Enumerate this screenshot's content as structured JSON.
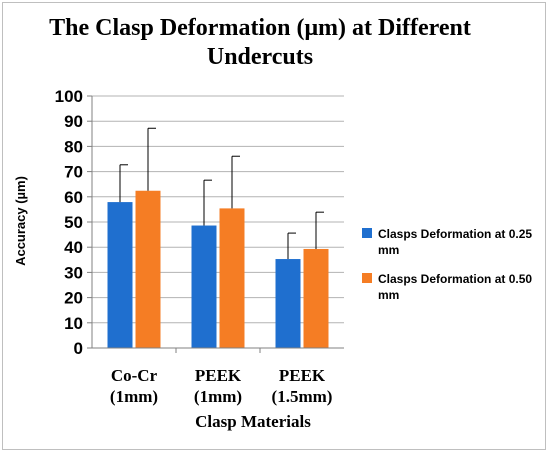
{
  "chart_data": {
    "type": "bar",
    "title": "The Clasp Deformation (μm) at Different Undercuts",
    "xlabel": "Clasp Materials",
    "ylabel": "Accuracy (µm)",
    "ylim": [
      0,
      100
    ],
    "yticks": [
      "0",
      "10",
      "20",
      "30",
      "40",
      "50",
      "60",
      "70",
      "80",
      "90",
      "100"
    ],
    "categories": [
      {
        "line1": "Co-Cr",
        "line2": "(1mm)"
      },
      {
        "line1": "PEEK",
        "line2": "(1mm)"
      },
      {
        "line1": "PEEK",
        "line2": "(1.5mm)"
      }
    ],
    "series": [
      {
        "name": "Clasps Deformation at 0.25 mm",
        "color": "#1f6fcf",
        "values": [
          57.9,
          48.6,
          35.3
        ],
        "errors": [
          14.8,
          18.0,
          10.3
        ]
      },
      {
        "name": "Clasps Deformation at 0.50 mm",
        "color": "#f57d24",
        "values": [
          62.4,
          55.4,
          39.3
        ],
        "errors": [
          24.8,
          20.7,
          14.6
        ]
      }
    ],
    "grid": true,
    "legend": "right"
  }
}
